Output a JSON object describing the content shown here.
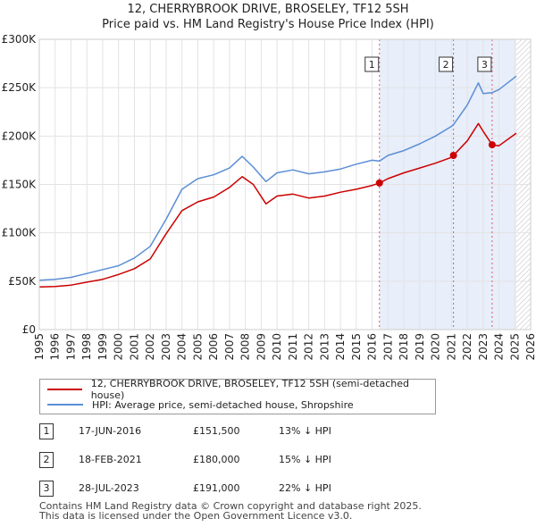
{
  "title": "12, CHERRYBROOK DRIVE, BROSELEY, TF12 5SH",
  "subtitle": "Price paid vs. HM Land Registry's House Price Index (HPI)",
  "colors": {
    "property": "#cc0000",
    "hpi": "#5b8ed6",
    "highlight": "#e8eefa",
    "hatch": "#bbbbbb",
    "marker_line": "#e05a5a"
  },
  "legend": {
    "property_label": "12, CHERRYBROOK DRIVE, BROSELEY, TF12 5SH (semi-detached house)",
    "hpi_label": "HPI: Average price, semi-detached house, Shropshire"
  },
  "transactions": [
    {
      "num": "1",
      "date": "17-JUN-2016",
      "price": "£151,500",
      "hpi": "13% ↓ HPI"
    },
    {
      "num": "2",
      "date": "18-FEB-2021",
      "price": "£180,000",
      "hpi": "15% ↓ HPI"
    },
    {
      "num": "3",
      "date": "28-JUL-2023",
      "price": "£191,000",
      "hpi": "22% ↓ HPI"
    }
  ],
  "footer": {
    "line1": "Contains HM Land Registry data © Crown copyright and database right 2025.",
    "line2": "This data is licensed under the Open Government Licence v3.0."
  },
  "chart_data": {
    "type": "line",
    "title": "12, CHERRYBROOK DRIVE, BROSELEY, TF12 5SH",
    "subtitle": "Price paid vs. HM Land Registry's House Price Index (HPI)",
    "xlim": [
      1995,
      2026
    ],
    "ylim": [
      0,
      300000
    ],
    "x_ticks": [
      1995,
      1996,
      1997,
      1998,
      1999,
      2000,
      2001,
      2002,
      2003,
      2004,
      2005,
      2006,
      2007,
      2008,
      2009,
      2010,
      2011,
      2012,
      2013,
      2014,
      2015,
      2016,
      2017,
      2018,
      2019,
      2020,
      2021,
      2022,
      2023,
      2024,
      2025,
      2026
    ],
    "y_ticks": [
      {
        "value": 0,
        "label": "£0"
      },
      {
        "value": 50000,
        "label": "£50K"
      },
      {
        "value": 100000,
        "label": "£100K"
      },
      {
        "value": 150000,
        "label": "£150K"
      },
      {
        "value": 200000,
        "label": "£200K"
      },
      {
        "value": 250000,
        "label": "£250K"
      },
      {
        "value": 300000,
        "label": "£300K"
      }
    ],
    "grid": true,
    "highlight_range": [
      2016.46,
      2025.1
    ],
    "future_range": [
      2025.1,
      2026
    ],
    "series": [
      {
        "name": "12, CHERRYBROOK DRIVE, BROSELEY, TF12 5SH (semi-detached house)",
        "x": [
          1995,
          1996,
          1997,
          1998,
          1999,
          2000,
          2001,
          2002,
          2003,
          2004,
          2005,
          2006,
          2007,
          2007.8,
          2008.5,
          2009.3,
          2010,
          2011,
          2012,
          2013,
          2014,
          2015,
          2016,
          2016.46,
          2017,
          2018,
          2019,
          2020,
          2021,
          2021.13,
          2022,
          2022.7,
          2023,
          2023.57,
          2024,
          2025.1
        ],
        "y": [
          44000,
          44500,
          46000,
          49000,
          52000,
          57000,
          63000,
          73000,
          99000,
          123000,
          132000,
          137000,
          147000,
          158000,
          150000,
          130000,
          138000,
          140000,
          136000,
          138000,
          142000,
          145000,
          149000,
          151500,
          156000,
          162000,
          167000,
          172000,
          178000,
          180000,
          195000,
          213000,
          205000,
          191000,
          190000,
          203000
        ]
      },
      {
        "name": "HPI: Average price, semi-detached house, Shropshire",
        "x": [
          1995,
          1996,
          1997,
          1998,
          1999,
          2000,
          2001,
          2002,
          2003,
          2004,
          2005,
          2006,
          2007,
          2007.8,
          2008.5,
          2009.3,
          2010,
          2011,
          2012,
          2013,
          2014,
          2015,
          2016,
          2016.46,
          2017,
          2018,
          2019,
          2020,
          2021,
          2021.13,
          2022,
          2022.7,
          2023,
          2023.57,
          2024,
          2025.1
        ],
        "y": [
          51000,
          52000,
          54000,
          58000,
          62000,
          66000,
          74000,
          86000,
          114000,
          145000,
          156000,
          160000,
          167000,
          179000,
          168000,
          153000,
          162000,
          165000,
          161000,
          163000,
          166000,
          171000,
          175000,
          174100,
          180000,
          185000,
          192000,
          200000,
          210000,
          211800,
          232000,
          255000,
          244000,
          244900,
          248000,
          262000
        ]
      }
    ],
    "markers": [
      {
        "label": "1",
        "x": 2016.46,
        "y": 151500
      },
      {
        "label": "2",
        "x": 2021.13,
        "y": 180000
      },
      {
        "label": "3",
        "x": 2023.57,
        "y": 191000
      }
    ]
  }
}
